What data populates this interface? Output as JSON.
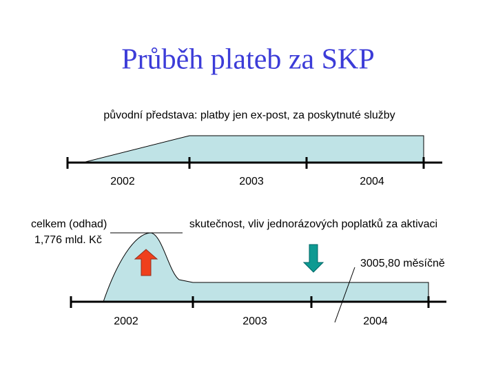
{
  "title": "Průběh plateb za SKP",
  "top": {
    "caption": "původní představa: platby jen ex-post, za poskytnuté  služby",
    "years": [
      "2002",
      "2003",
      "2004"
    ]
  },
  "bottom": {
    "caption": "skutečnost, vliv jednorázových poplatků za aktivaci",
    "estimate_label": "celkem (odhad)",
    "estimate_value": "1,776 mld. Kč",
    "monthly": "3005,80 měsíčně",
    "years": [
      "2002",
      "2003",
      "2004"
    ]
  }
}
